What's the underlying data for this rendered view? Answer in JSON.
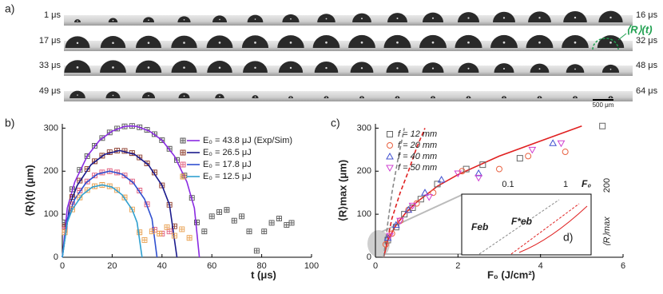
{
  "image_strip": {
    "label": "a)",
    "left_labels": [
      "1 μs",
      "17 μs",
      "33 μs",
      "49 μs"
    ],
    "right_labels": [
      "16 μs",
      "32 μs",
      "48 μs",
      "64 μs"
    ],
    "annotation": "⟨R⟩(t)",
    "scale_bar": "500 μm"
  },
  "chart_data": [
    {
      "type": "scatter-line",
      "label": "b)",
      "x_label": "t (μs)",
      "y_label": "⟨R⟩(t) (μm)",
      "xlim": [
        0,
        100
      ],
      "xticks": [
        0,
        20,
        40,
        60,
        80,
        100
      ],
      "ylim": [
        0,
        310
      ],
      "yticks": [
        0,
        100,
        200,
        300
      ],
      "series": [
        {
          "name": "E₀ = 43.8 μJ (Exp/Sim)",
          "color": "#555555",
          "line_color": "#8a2be2",
          "x": [
            1,
            4,
            7,
            10,
            13,
            16,
            19,
            22,
            25,
            28,
            31,
            34,
            37,
            40,
            43,
            46,
            49,
            52,
            54,
            57,
            60,
            63,
            66,
            69,
            72,
            75,
            78,
            81,
            84,
            87,
            90,
            92
          ],
          "values": [
            81,
            158,
            203,
            235,
            259,
            277,
            290,
            299,
            304,
            305,
            302,
            296,
            286,
            272,
            252,
            226,
            190,
            138,
            81,
            60,
            95,
            105,
            110,
            85,
            95,
            60,
            15,
            60,
            80,
            90,
            75,
            80
          ],
          "sim_x": [
            0,
            2,
            5,
            10,
            15,
            20,
            25,
            27.5,
            30,
            35,
            40,
            45,
            50,
            53,
            55
          ],
          "sim_values": [
            0,
            114,
            175,
            235,
            272,
            293,
            304,
            305,
            304,
            293,
            272,
            235,
            175,
            114,
            0
          ]
        },
        {
          "name": "E₀ = 26.5 μJ",
          "color": "#8b3a2a",
          "line_color": "#1a1a8c",
          "x": [
            1,
            4,
            7,
            10,
            13,
            16,
            19,
            22,
            25,
            28,
            31,
            34,
            37,
            40,
            43,
            45
          ],
          "values": [
            72,
            140,
            178,
            205,
            223,
            236,
            244,
            248,
            247,
            242,
            232,
            218,
            197,
            167,
            122,
            72
          ],
          "sim_x": [
            0,
            3,
            6,
            11.5,
            17,
            23,
            29,
            34.5,
            40,
            43,
            46
          ],
          "sim_values": [
            0,
            122,
            167,
            215,
            239,
            248,
            239,
            215,
            167,
            122,
            0
          ]
        },
        {
          "name": "E₀ = 17.8 μJ",
          "color": "#e06080",
          "line_color": "#3050d0",
          "x": [
            1,
            4,
            7,
            10,
            13,
            16,
            19,
            22,
            25,
            28,
            31,
            34,
            37,
            40,
            43
          ],
          "values": [
            64,
            123,
            155,
            176,
            190,
            197,
            200,
            197,
            190,
            176,
            155,
            123,
            64,
            55,
            60
          ],
          "sim_x": [
            0,
            2,
            5,
            9.5,
            14,
            19,
            24,
            28.5,
            33,
            36,
            38
          ],
          "sim_values": [
            0,
            89,
            135,
            173,
            193,
            200,
            193,
            173,
            135,
            89,
            0
          ]
        },
        {
          "name": "E₀ = 12.5 μJ",
          "color": "#e8a050",
          "line_color": "#30a0d0",
          "x": [
            1,
            4,
            7,
            10,
            13,
            16,
            19,
            22,
            25,
            28,
            31,
            33,
            36,
            39,
            42,
            45,
            48,
            51
          ],
          "values": [
            58,
            111,
            139,
            156,
            165,
            168,
            165,
            156,
            139,
            111,
            58,
            40,
            60,
            55,
            70,
            50,
            65,
            45
          ],
          "sim_x": [
            0,
            2,
            4,
            8,
            12,
            16,
            20,
            24,
            28,
            30,
            32
          ],
          "sim_values": [
            0,
            81,
            111,
            145,
            163,
            168,
            163,
            145,
            111,
            81,
            0
          ]
        }
      ]
    },
    {
      "type": "scatter",
      "label": "c)",
      "x_label": "F₀ (J/cm²)",
      "y_label": "⟨R⟩max (μm)",
      "xlim": [
        0,
        6
      ],
      "xticks": [
        0,
        2,
        4,
        6
      ],
      "ylim": [
        0,
        310
      ],
      "yticks": [
        0,
        100,
        200,
        300
      ],
      "series": [
        {
          "name": "f = 12 mm",
          "marker": "square",
          "color": "#666666",
          "x": [
            0.3,
            0.5,
            0.7,
            0.9,
            1.1,
            1.5,
            2.2,
            2.6,
            3.5,
            5.5
          ],
          "values": [
            40,
            70,
            100,
            115,
            135,
            170,
            205,
            215,
            230,
            305
          ]
        },
        {
          "name": "f = 20 mm",
          "marker": "circle",
          "color": "#e86040",
          "x": [
            0.25,
            0.4,
            0.6,
            0.8,
            1.0,
            1.4,
            2.1,
            3.0,
            3.7,
            4.6
          ],
          "values": [
            30,
            55,
            85,
            110,
            125,
            150,
            200,
            205,
            235,
            245
          ]
        },
        {
          "name": "f = 40 mm",
          "marker": "triangle-up",
          "color": "#4050d0",
          "x": [
            0.3,
            0.5,
            0.8,
            1.2,
            1.6,
            2.5,
            4.3
          ],
          "values": [
            45,
            75,
            110,
            150,
            180,
            195,
            265
          ]
        },
        {
          "name": "f = 50 mm",
          "marker": "triangle-down",
          "color": "#d040d0",
          "x": [
            0.35,
            0.6,
            0.9,
            1.3,
            2.0,
            2.5,
            3.8,
            4.5
          ],
          "values": [
            50,
            85,
            120,
            140,
            195,
            185,
            250,
            265
          ]
        }
      ],
      "fits": [
        {
          "color": "#e02020",
          "dashed": false,
          "x": [
            0.2,
            0.3,
            0.5,
            0.75,
            1,
            1.5,
            2,
            3,
            4,
            5
          ],
          "values": [
            0,
            40,
            75,
            105,
            128,
            165,
            192,
            235,
            270,
            305
          ]
        },
        {
          "color": "#e02020",
          "dashed": true,
          "x": [
            0.2,
            0.4,
            0.6,
            0.8,
            1.0,
            1.2
          ],
          "values": [
            0,
            90,
            150,
            200,
            255,
            300
          ]
        },
        {
          "color": "#888888",
          "dashed": true,
          "x": [
            0.2,
            0.3,
            0.4,
            0.55,
            0.7
          ],
          "values": [
            0,
            80,
            150,
            230,
            300
          ]
        }
      ],
      "inset": {
        "x_tick_labels": [
          "0.1",
          "1"
        ],
        "x_label": "F₀",
        "y_label": "⟨R⟩max",
        "y_tick_label": "200",
        "marker_labels": [
          "Feb",
          "F*eb"
        ],
        "label": "d)"
      }
    }
  ]
}
